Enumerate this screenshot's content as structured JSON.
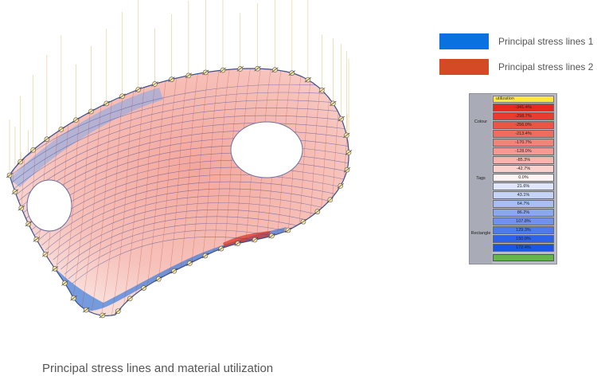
{
  "legend": {
    "items": [
      {
        "label": "Principal stress  lines 1",
        "color": "#0a72e0"
      },
      {
        "label": "Principal stress  lines 2",
        "color": "#d44a24"
      }
    ]
  },
  "utilization_panel": {
    "header": "utilization",
    "side_labels": [
      "Colour",
      "Tags",
      "Rectangle"
    ],
    "cells": [
      {
        "value": "-341.4%",
        "color": "#e8291e"
      },
      {
        "value": "-298.7%",
        "color": "#ea3b2c"
      },
      {
        "value": "-256.0%",
        "color": "#ec5546"
      },
      {
        "value": "-213.4%",
        "color": "#ef6c5f"
      },
      {
        "value": "-170.7%",
        "color": "#f28379"
      },
      {
        "value": "-128.0%",
        "color": "#f59a92"
      },
      {
        "value": "-85.3%",
        "color": "#f8b5b0"
      },
      {
        "value": "-42.7%",
        "color": "#fbd1ce"
      },
      {
        "value": "0.0%",
        "color": "#fdf4f3"
      },
      {
        "value": "21.6%",
        "color": "#dfe6fb"
      },
      {
        "value": "43.1%",
        "color": "#c5d3f7"
      },
      {
        "value": "64.7%",
        "color": "#a9bff4"
      },
      {
        "value": "86.2%",
        "color": "#8aa8f0"
      },
      {
        "value": "107.8%",
        "color": "#6f92ee"
      },
      {
        "value": "129.3%",
        "color": "#4d7bec"
      },
      {
        "value": "150.9%",
        "color": "#2d63ea"
      },
      {
        "value": "172.4%",
        "color": "#1a55e6"
      }
    ],
    "footer_color": "#63b74a"
  },
  "caption": "Principal stress lines and material utilization"
}
